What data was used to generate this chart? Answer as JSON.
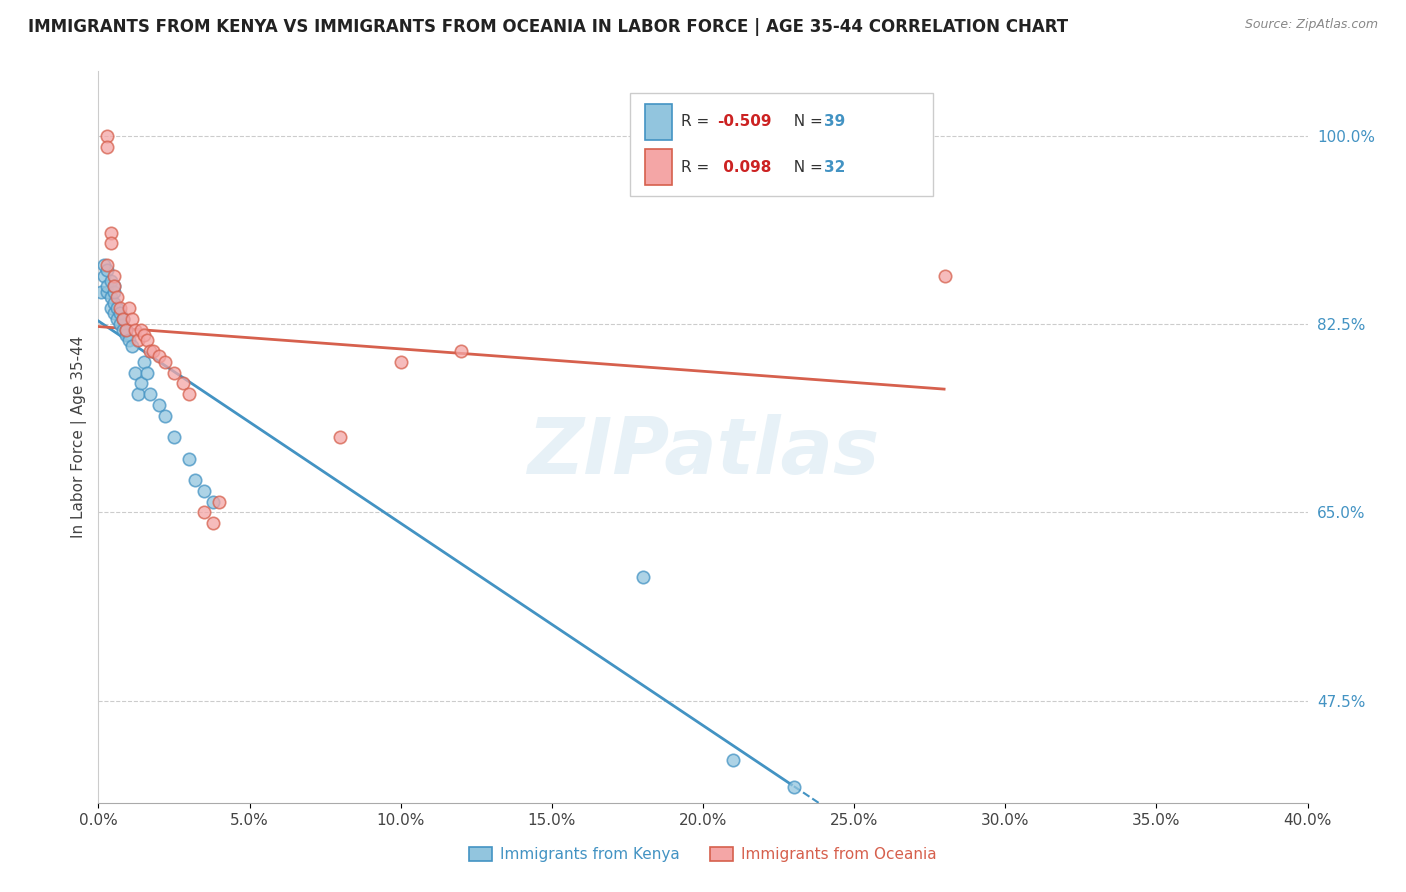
{
  "title": "IMMIGRANTS FROM KENYA VS IMMIGRANTS FROM OCEANIA IN LABOR FORCE | AGE 35-44 CORRELATION CHART",
  "source": "Source: ZipAtlas.com",
  "ylabel": "In Labor Force | Age 35-44",
  "right_yticks": [
    1.0,
    0.825,
    0.65,
    0.475
  ],
  "right_yticklabels": [
    "100.0%",
    "82.5%",
    "65.0%",
    "47.5%"
  ],
  "kenya_R": -0.509,
  "kenya_N": 39,
  "oceania_R": 0.098,
  "oceania_N": 32,
  "kenya_color": "#92c5de",
  "oceania_color": "#f4a6a6",
  "kenya_edge_color": "#4393c3",
  "oceania_edge_color": "#d6604d",
  "kenya_line_color": "#4393c3",
  "oceania_line_color": "#d6604d",
  "watermark": "ZIPatlas",
  "xlim": [
    0.0,
    0.4
  ],
  "ylim": [
    0.38,
    1.06
  ],
  "kenya_x": [
    0.001,
    0.002,
    0.002,
    0.003,
    0.003,
    0.003,
    0.004,
    0.004,
    0.004,
    0.005,
    0.005,
    0.005,
    0.005,
    0.006,
    0.006,
    0.007,
    0.007,
    0.008,
    0.008,
    0.009,
    0.009,
    0.01,
    0.011,
    0.012,
    0.013,
    0.014,
    0.015,
    0.016,
    0.017,
    0.02,
    0.022,
    0.025,
    0.03,
    0.032,
    0.035,
    0.038,
    0.18,
    0.21,
    0.23
  ],
  "kenya_y": [
    0.855,
    0.87,
    0.88,
    0.855,
    0.86,
    0.875,
    0.84,
    0.85,
    0.865,
    0.835,
    0.845,
    0.855,
    0.86,
    0.83,
    0.84,
    0.825,
    0.835,
    0.82,
    0.83,
    0.815,
    0.82,
    0.81,
    0.805,
    0.78,
    0.76,
    0.77,
    0.79,
    0.78,
    0.76,
    0.75,
    0.74,
    0.72,
    0.7,
    0.68,
    0.67,
    0.66,
    0.59,
    0.42,
    0.395
  ],
  "oceania_x": [
    0.003,
    0.003,
    0.003,
    0.004,
    0.004,
    0.005,
    0.005,
    0.006,
    0.007,
    0.008,
    0.009,
    0.01,
    0.011,
    0.012,
    0.013,
    0.014,
    0.015,
    0.016,
    0.017,
    0.018,
    0.02,
    0.022,
    0.025,
    0.028,
    0.03,
    0.035,
    0.038,
    0.04,
    0.08,
    0.1,
    0.12,
    0.28
  ],
  "oceania_y": [
    1.0,
    0.99,
    0.88,
    0.91,
    0.9,
    0.87,
    0.86,
    0.85,
    0.84,
    0.83,
    0.82,
    0.84,
    0.83,
    0.82,
    0.81,
    0.82,
    0.815,
    0.81,
    0.8,
    0.8,
    0.795,
    0.79,
    0.78,
    0.77,
    0.76,
    0.65,
    0.64,
    0.66,
    0.72,
    0.79,
    0.8,
    0.87
  ]
}
